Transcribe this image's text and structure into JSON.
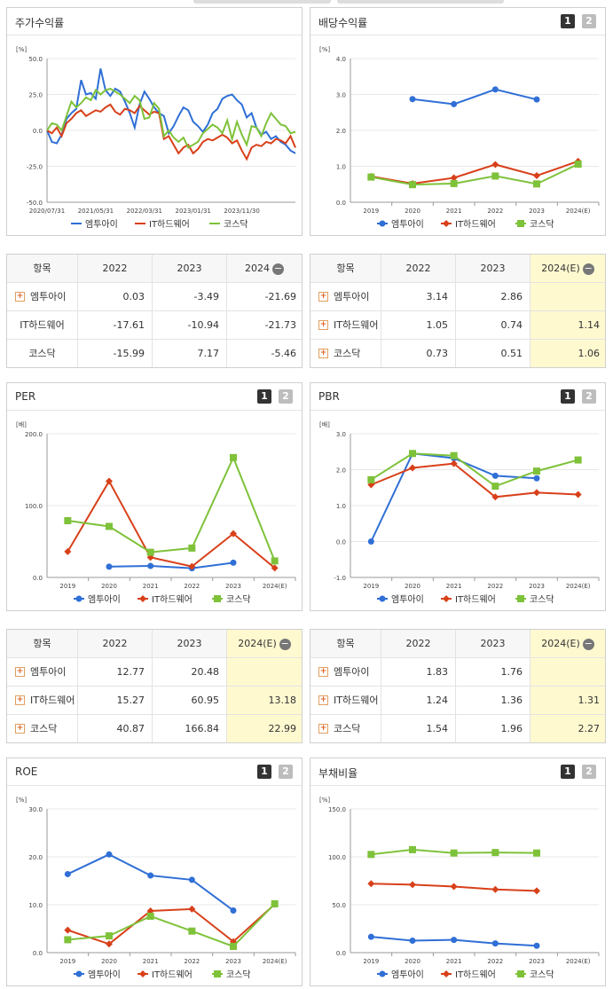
{
  "colors": {
    "s1": "#2f6fd6",
    "s2": "#d8401a",
    "s3": "#7ec23a"
  },
  "legend": [
    "엠투아이",
    "IT하드웨어",
    "코스닥"
  ],
  "panels": {
    "stock": {
      "title": "주가수익률",
      "unit": "[%]"
    },
    "div": {
      "title": "배당수익률",
      "unit": "[%]",
      "p1": "1",
      "p2": "2"
    },
    "per": {
      "title": "PER",
      "unit": "[배]",
      "p1": "1",
      "p2": "2"
    },
    "pbr": {
      "title": "PBR",
      "unit": "[배]",
      "p1": "1",
      "p2": "2"
    },
    "roe": {
      "title": "ROE",
      "unit": "[%]",
      "p1": "1",
      "p2": "2"
    },
    "debt": {
      "title": "부채비율",
      "unit": "[%]",
      "p1": "1",
      "p2": "2"
    }
  },
  "tables": {
    "stock": {
      "h0": "항목",
      "h1": "2022",
      "h2": "2023",
      "h3": "2024",
      "rows": [
        {
          "name": "엠투아이",
          "v1": "0.03",
          "v2": "-3.49",
          "v3": "-21.69",
          "plus": true
        },
        {
          "name": "IT하드웨어",
          "v1": "-17.61",
          "v2": "-10.94",
          "v3": "-21.73",
          "plus": false
        },
        {
          "name": "코스닥",
          "v1": "-15.99",
          "v2": "7.17",
          "v3": "-5.46",
          "plus": false
        }
      ]
    },
    "div": {
      "h0": "항목",
      "h1": "2022",
      "h2": "2023",
      "h3": "2024(E)",
      "rows": [
        {
          "name": "엠투아이",
          "v1": "3.14",
          "v2": "2.86",
          "v3": "",
          "plus": true
        },
        {
          "name": "IT하드웨어",
          "v1": "1.05",
          "v2": "0.74",
          "v3": "1.14",
          "plus": true
        },
        {
          "name": "코스닥",
          "v1": "0.73",
          "v2": "0.51",
          "v3": "1.06",
          "plus": true
        }
      ]
    },
    "per": {
      "h0": "항목",
      "h1": "2022",
      "h2": "2023",
      "h3": "2024(E)",
      "rows": [
        {
          "name": "엠투아이",
          "v1": "12.77",
          "v2": "20.48",
          "v3": "",
          "plus": true
        },
        {
          "name": "IT하드웨어",
          "v1": "15.27",
          "v2": "60.95",
          "v3": "13.18",
          "plus": true
        },
        {
          "name": "코스닥",
          "v1": "40.87",
          "v2": "166.84",
          "v3": "22.99",
          "plus": true
        }
      ]
    },
    "pbr": {
      "h0": "항목",
      "h1": "2022",
      "h2": "2023",
      "h3": "2024(E)",
      "rows": [
        {
          "name": "엠투아이",
          "v1": "1.83",
          "v2": "1.76",
          "v3": "",
          "plus": true
        },
        {
          "name": "IT하드웨어",
          "v1": "1.24",
          "v2": "1.36",
          "v3": "1.31",
          "plus": true
        },
        {
          "name": "코스닥",
          "v1": "1.54",
          "v2": "1.96",
          "v3": "2.27",
          "plus": true
        }
      ]
    }
  },
  "chart_data": [
    {
      "id": "stock",
      "type": "line",
      "ylim": [
        -50,
        50
      ],
      "yticks": [
        "50.0",
        "25.0",
        "0.0",
        "-25.0",
        "-50.0"
      ],
      "xticks": [
        "2020/07/31",
        "2021/05/31",
        "2022/03/31",
        "2023/01/31",
        "2023/11/30"
      ],
      "series": [
        {
          "name": "엠투아이",
          "values": [
            0,
            -8,
            -9,
            -3,
            8,
            12,
            15,
            35,
            25,
            26,
            22,
            43,
            28,
            24,
            29,
            27,
            20,
            12,
            2,
            18,
            27,
            22,
            16,
            12,
            10,
            -2,
            3,
            10,
            16,
            14,
            6,
            3,
            -1,
            4,
            12,
            15,
            22,
            24,
            25,
            21,
            18,
            9,
            12,
            2,
            -3,
            -1,
            -6,
            -4,
            -8,
            -10,
            -14,
            -16
          ]
        },
        {
          "name": "IT하드웨어",
          "values": [
            0,
            -2,
            2,
            -4,
            5,
            8,
            12,
            14,
            10,
            12,
            14,
            13,
            16,
            18,
            13,
            11,
            15,
            14,
            12,
            17,
            14,
            11,
            13,
            12,
            -6,
            -4,
            -10,
            -16,
            -12,
            -10,
            -16,
            -13,
            -8,
            -6,
            -7,
            -5,
            -3,
            -5,
            -9,
            -7,
            -14,
            -20,
            -12,
            -10,
            -11,
            -8,
            -9,
            -6,
            -7,
            -9,
            -4,
            -12
          ]
        },
        {
          "name": "코스닥",
          "values": [
            0,
            5,
            4,
            0,
            10,
            20,
            16,
            19,
            23,
            21,
            28,
            25,
            28,
            29,
            27,
            25,
            22,
            19,
            24,
            21,
            8,
            9,
            19,
            15,
            -4,
            0,
            -5,
            -8,
            -5,
            -12,
            -10,
            -8,
            -2,
            1,
            4,
            2,
            -2,
            7,
            -6,
            6,
            -3,
            -10,
            3,
            2,
            -4,
            5,
            12,
            8,
            4,
            3,
            -2,
            -1
          ]
        }
      ]
    },
    {
      "id": "div",
      "type": "line",
      "ylim": [
        0,
        4
      ],
      "yticks": [
        "4.0",
        "3.0",
        "2.0",
        "1.0",
        "0.0"
      ],
      "categories": [
        "2019",
        "2020",
        "2021",
        "2022",
        "2023",
        "2024(E)"
      ],
      "series": [
        {
          "name": "엠투아이",
          "values": [
            null,
            2.87,
            2.73,
            3.14,
            2.86,
            null
          ]
        },
        {
          "name": "IT하드웨어",
          "values": [
            0.72,
            0.52,
            0.68,
            1.05,
            0.74,
            1.14
          ]
        },
        {
          "name": "코스닥",
          "values": [
            0.7,
            0.49,
            0.52,
            0.73,
            0.51,
            1.06
          ]
        }
      ]
    },
    {
      "id": "per",
      "type": "line",
      "ylim": [
        0,
        200
      ],
      "yticks": [
        "200.0",
        "100.0",
        "0.0"
      ],
      "categories": [
        "2019",
        "2020",
        "2021",
        "2022",
        "2023",
        "2024(E)"
      ],
      "series": [
        {
          "name": "엠투아이",
          "values": [
            null,
            15,
            16,
            12.77,
            20.48,
            null
          ]
        },
        {
          "name": "IT하드웨어",
          "values": [
            36,
            134,
            28,
            15.27,
            60.95,
            13.18
          ]
        },
        {
          "name": "코스닥",
          "values": [
            79,
            71,
            35,
            40.87,
            166.84,
            22.99
          ]
        }
      ]
    },
    {
      "id": "pbr",
      "type": "line",
      "ylim": [
        -1,
        3
      ],
      "yticks": [
        "3.0",
        "2.0",
        "1.0",
        "0.0",
        "-1.0"
      ],
      "categories": [
        "2019",
        "2020",
        "2021",
        "2022",
        "2023",
        "2024(E)"
      ],
      "series": [
        {
          "name": "엠투아이",
          "values": [
            0.0,
            2.45,
            2.32,
            1.83,
            1.76,
            null
          ]
        },
        {
          "name": "IT하드웨어",
          "values": [
            1.58,
            2.05,
            2.17,
            1.24,
            1.36,
            1.31
          ]
        },
        {
          "name": "코스닥",
          "values": [
            1.72,
            2.45,
            2.39,
            1.54,
            1.96,
            2.27
          ]
        }
      ]
    },
    {
      "id": "roe",
      "type": "line",
      "ylim": [
        0,
        30
      ],
      "yticks": [
        "30.0",
        "20.0",
        "10.0",
        "0.0"
      ],
      "categories": [
        "2019",
        "2020",
        "2021",
        "2022",
        "2023",
        "2024(E)"
      ],
      "series": [
        {
          "name": "엠투아이",
          "values": [
            16.4,
            20.5,
            16.1,
            15.2,
            8.8,
            null
          ]
        },
        {
          "name": "IT하드웨어",
          "values": [
            4.7,
            1.8,
            8.7,
            9.1,
            2.3,
            10.1
          ]
        },
        {
          "name": "코스닥",
          "values": [
            2.7,
            3.5,
            7.6,
            4.5,
            1.3,
            10.2
          ]
        }
      ]
    },
    {
      "id": "debt",
      "type": "line",
      "ylim": [
        0,
        150
      ],
      "yticks": [
        "150.0",
        "100.0",
        "50.0",
        "0.0"
      ],
      "categories": [
        "2019",
        "2020",
        "2021",
        "2022",
        "2023",
        "2024(E)"
      ],
      "series": [
        {
          "name": "엠투아이",
          "values": [
            16.5,
            12.5,
            13.3,
            9.6,
            7.2,
            null
          ]
        },
        {
          "name": "IT하드웨어",
          "values": [
            72,
            71,
            69,
            66,
            64.5,
            null
          ]
        },
        {
          "name": "코스닥",
          "values": [
            102.5,
            107.5,
            104,
            104.5,
            104,
            null
          ]
        }
      ]
    }
  ]
}
